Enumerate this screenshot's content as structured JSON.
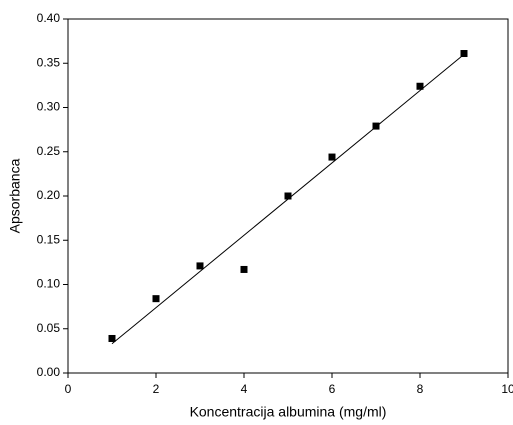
{
  "chart_data": {
    "type": "scatter",
    "x_label": "Koncentracija albumina (mg/ml)",
    "y_label": "Apsorbanca",
    "x": [
      1,
      2,
      3,
      4,
      5,
      6,
      7,
      8,
      9
    ],
    "values": [
      0.039,
      0.084,
      0.121,
      0.117,
      0.2,
      0.244,
      0.279,
      0.324,
      0.361
    ],
    "color": "#000000",
    "fit": {
      "x": [
        1,
        9
      ],
      "values": [
        0.033,
        0.36
      ]
    },
    "xlim": [
      0,
      10
    ],
    "xticks": [
      0,
      2,
      4,
      6,
      8,
      10
    ],
    "ylim": [
      0,
      0.4
    ],
    "yticks": [
      {
        "value": 0,
        "label": "0.00"
      },
      {
        "value": 0.05,
        "label": "0.05"
      },
      {
        "value": 0.1,
        "label": "0.10"
      },
      {
        "value": 0.15,
        "label": "0.15"
      },
      {
        "value": 0.2,
        "label": "0.20"
      },
      {
        "value": 0.25,
        "label": "0.25"
      },
      {
        "value": 0.3,
        "label": "0.30"
      },
      {
        "value": 0.35,
        "label": "0.35"
      },
      {
        "value": 0.4,
        "label": "0.40"
      }
    ]
  }
}
